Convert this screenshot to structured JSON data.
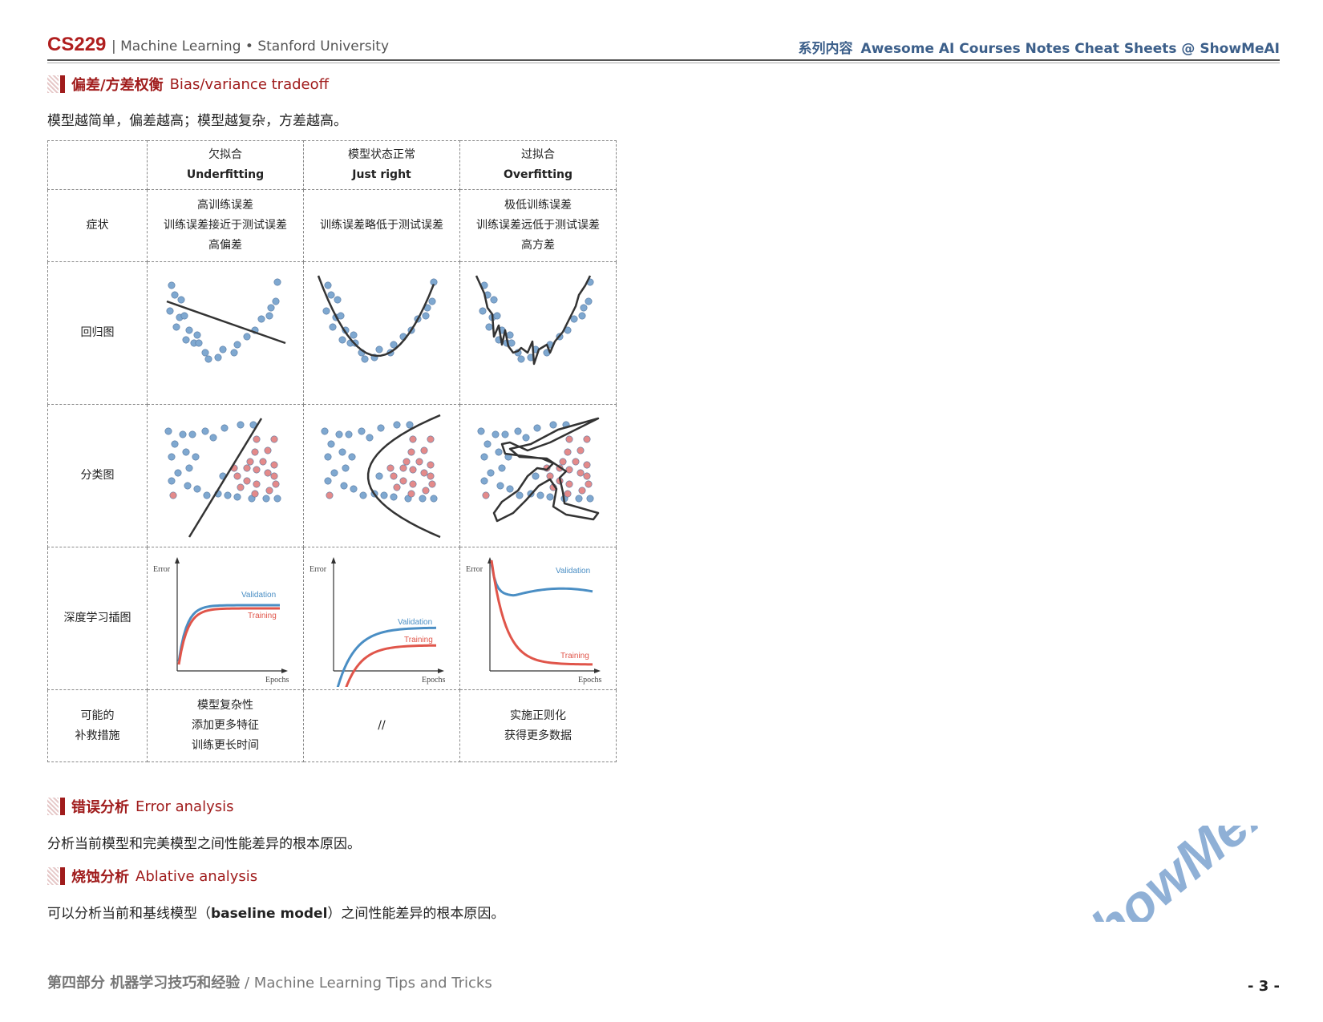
{
  "header": {
    "brand": "CS229",
    "subtitle": "| Machine Learning • Stanford University",
    "series_cn": "系列内容",
    "series_en": "Awesome AI Courses Notes Cheat Sheets @ ShowMeAI"
  },
  "sections": {
    "bias": {
      "cn": "偏差/方差权衡",
      "en": "Bias/variance tradeoff",
      "text": "模型越简单，偏差越高；模型越复杂，方差越高。"
    },
    "error": {
      "cn": "错误分析",
      "en": "Error analysis",
      "text": "分析当前模型和完美模型之间性能差异的根本原因。"
    },
    "ablative": {
      "cn": "烧蚀分析",
      "en": "Ablative analysis",
      "text_pre": "可以分析当前和基线模型（",
      "text_bold": "baseline model",
      "text_post": "）之间性能差异的根本原因。"
    }
  },
  "table": {
    "columns": [
      {
        "cn": "欠拟合",
        "en": "Underfitting"
      },
      {
        "cn": "模型状态正常",
        "en": "Just right"
      },
      {
        "cn": "过拟合",
        "en": "Overfitting"
      }
    ],
    "rows": {
      "symptoms": {
        "label": "症状",
        "cells": [
          [
            "高训练误差",
            "训练误差接近于测试误差",
            "高偏差"
          ],
          [
            "训练误差略低于测试误差"
          ],
          [
            "极低训练误差",
            "训练误差远低于测试误差",
            "高方差"
          ]
        ]
      },
      "regression": {
        "label": "回归图"
      },
      "classification": {
        "label": "分类图"
      },
      "deep": {
        "label": "深度学习插图",
        "axis_y": "Error",
        "axis_x": "Epochs",
        "validation": "Validation",
        "training": "Training"
      },
      "remedies": {
        "label_1": "可能的",
        "label_2": "补救措施",
        "cells": [
          [
            "模型复杂性",
            "添加更多特征",
            "训练更长时间"
          ],
          [
            "//"
          ],
          [
            "实施正则化",
            "获得更多数据"
          ]
        ]
      }
    }
  },
  "footer": {
    "cn": "第四部分 机器学习技巧和经验",
    "en": "/ Machine Learning Tips and Tricks"
  },
  "page_number": "- 3 -",
  "watermark": "ShowMeAI",
  "colors": {
    "accent": "#a01c1c",
    "series": "#3c5f8a",
    "blue_dot": "#7fa8d0",
    "red_dot": "#e48a8a",
    "validation": "#4a8ec4",
    "training": "#e0554a"
  }
}
